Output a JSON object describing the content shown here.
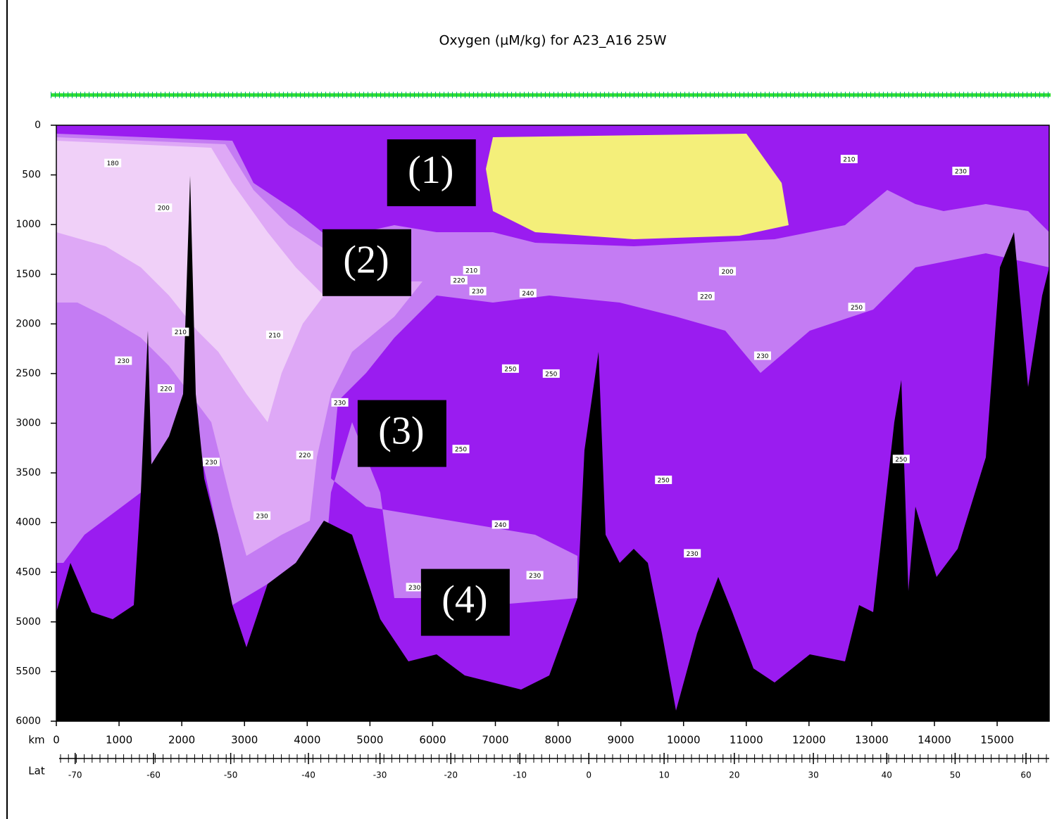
{
  "chart_data": {
    "type": "section",
    "title": "Oxygen (µM/kg) for A23_A16 25W",
    "xlabel": "km",
    "lat_label": "Lat",
    "xlim": [
      0,
      15830
    ],
    "ylim": [
      0,
      6000
    ],
    "xticks": [
      0,
      1000,
      2000,
      3000,
      4000,
      5000,
      6000,
      7000,
      8000,
      9000,
      10000,
      11000,
      12000,
      13000,
      14000,
      15000
    ],
    "yticks": [
      0,
      500,
      1000,
      1500,
      2000,
      2500,
      3000,
      3500,
      4000,
      4500,
      5000,
      5500,
      6000
    ],
    "lat_ticks": [
      -70,
      -60,
      -50,
      -40,
      -30,
      -20,
      -10,
      0,
      10,
      20,
      30,
      40,
      50,
      60
    ],
    "lat_ticks_km": [
      300,
      1550,
      2780,
      4020,
      5160,
      6290,
      7390,
      8490,
      9690,
      10810,
      12070,
      13240,
      14330,
      15460
    ],
    "annotations": [
      {
        "text": "(1)",
        "x": 5970,
        "y": 475
      },
      {
        "text": "(2)",
        "x": 4940,
        "y": 1380
      },
      {
        "text": "(3)",
        "x": 5500,
        "y": 3100
      },
      {
        "text": "(4)",
        "x": 6510,
        "y": 4800
      }
    ],
    "contour_labels": [
      {
        "x": 900,
        "y": 380,
        "label": 180
      },
      {
        "x": 1710,
        "y": 830,
        "label": 200
      },
      {
        "x": 1980,
        "y": 2080,
        "label": 210
      },
      {
        "x": 1070,
        "y": 2370,
        "label": 230
      },
      {
        "x": 1750,
        "y": 2650,
        "label": 220
      },
      {
        "x": 2470,
        "y": 3390,
        "label": 230
      },
      {
        "x": 3480,
        "y": 2110,
        "label": 210
      },
      {
        "x": 3960,
        "y": 3320,
        "label": 220
      },
      {
        "x": 3280,
        "y": 3930,
        "label": 230
      },
      {
        "x": 4520,
        "y": 2790,
        "label": 230
      },
      {
        "x": 7240,
        "y": 2450,
        "label": 250
      },
      {
        "x": 7890,
        "y": 2500,
        "label": 250
      },
      {
        "x": 6450,
        "y": 3260,
        "label": 250
      },
      {
        "x": 7080,
        "y": 4020,
        "label": 240
      },
      {
        "x": 5710,
        "y": 4650,
        "label": 230
      },
      {
        "x": 7630,
        "y": 4530,
        "label": 230
      },
      {
        "x": 9680,
        "y": 3570,
        "label": 250
      },
      {
        "x": 10140,
        "y": 4310,
        "label": 230
      },
      {
        "x": 11260,
        "y": 2320,
        "label": 230
      },
      {
        "x": 10360,
        "y": 1720,
        "label": 220
      },
      {
        "x": 10700,
        "y": 1470,
        "label": 200
      },
      {
        "x": 12640,
        "y": 340,
        "label": 210
      },
      {
        "x": 14420,
        "y": 460,
        "label": 230
      },
      {
        "x": 12760,
        "y": 1830,
        "label": 250
      },
      {
        "x": 13470,
        "y": 3360,
        "label": 250
      },
      {
        "x": 6620,
        "y": 1460,
        "label": 210
      },
      {
        "x": 6420,
        "y": 1560,
        "label": 220
      },
      {
        "x": 6720,
        "y": 1670,
        "label": 230
      },
      {
        "x": 7520,
        "y": 1690,
        "label": 240
      }
    ]
  }
}
